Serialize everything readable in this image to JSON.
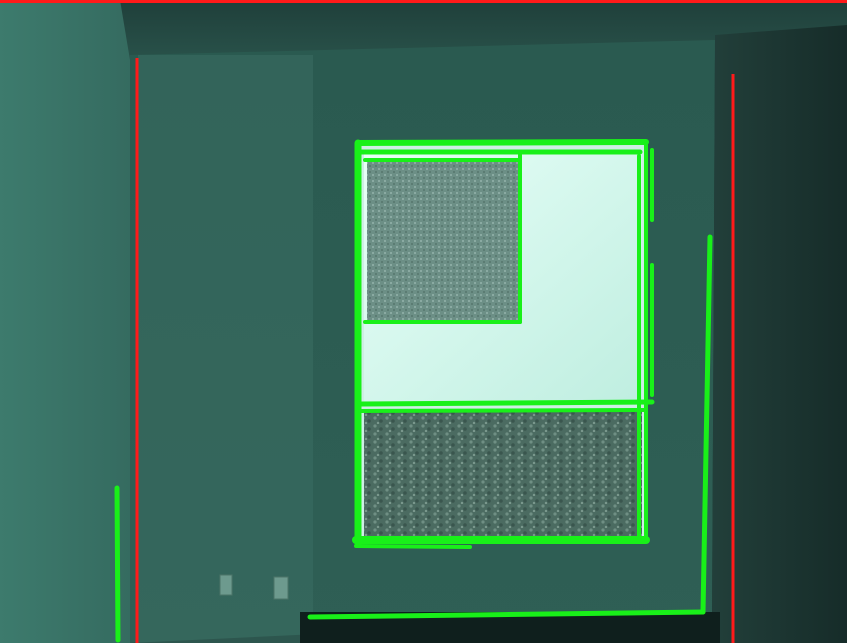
{
  "image": {
    "colors": {
      "detected_vertical_lines": "#ff1a1a",
      "detected_frame_segments": "#19f019",
      "frame_top_border": "#ff1a1a",
      "wall_left": "#3f7a6d",
      "wall_back": "#2c5a50",
      "wall_right": "#17332f",
      "window_glass": "#d9fff5",
      "carpet": "#4f6f64"
    }
  }
}
